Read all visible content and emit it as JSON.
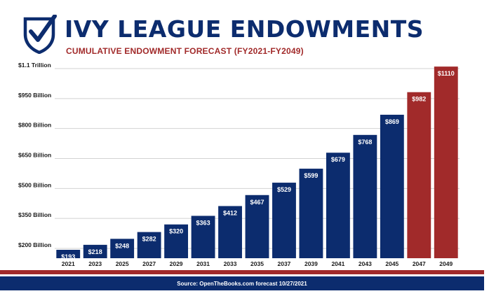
{
  "header": {
    "title": "IVY LEAGUE ENDOWMENTS",
    "subtitle": "CUMULATIVE ENDOWMENT FORECAST (FY2021-FY2049)"
  },
  "logo": {
    "icon": "shield-check-icon",
    "color": "#0c2c6e"
  },
  "footer": {
    "source": "Source: OpenTheBooks.com forecast 10/27/2021"
  },
  "colors": {
    "navy": "#0c2c6e",
    "red": "#a12a2a"
  },
  "chart_data": {
    "type": "bar",
    "title": "IVY LEAGUE ENDOWMENTS",
    "subtitle": "CUMULATIVE ENDOWMENT FORECAST (FY2021-FY2049)",
    "unit": "Billion USD",
    "categories": [
      "2021",
      "2023",
      "2025",
      "2027",
      "2029",
      "2031",
      "2033",
      "2035",
      "2037",
      "2039",
      "2041",
      "2043",
      "2045",
      "2047",
      "2049"
    ],
    "values": [
      193,
      218,
      248,
      282,
      320,
      363,
      412,
      467,
      529,
      599,
      679,
      768,
      869,
      982,
      1110
    ],
    "value_labels": [
      "$193",
      "$218",
      "$248",
      "$282",
      "$320",
      "$363",
      "$412",
      "$467",
      "$529",
      "$599",
      "$679",
      "$768",
      "$869",
      "$982",
      "$1110"
    ],
    "highlight_categories": [
      "2047",
      "2049"
    ],
    "y_ticks": [
      200,
      350,
      500,
      650,
      800,
      950,
      1100
    ],
    "y_tick_labels": [
      "$200 Billion",
      "$350 Billion",
      "$500 Billion",
      "$650 Billion",
      "$800 Billion",
      "$950 Billion",
      "$1.1 Trillion"
    ],
    "ylim": [
      200,
      1100
    ],
    "grid": true,
    "xlabel": "",
    "ylabel": ""
  }
}
